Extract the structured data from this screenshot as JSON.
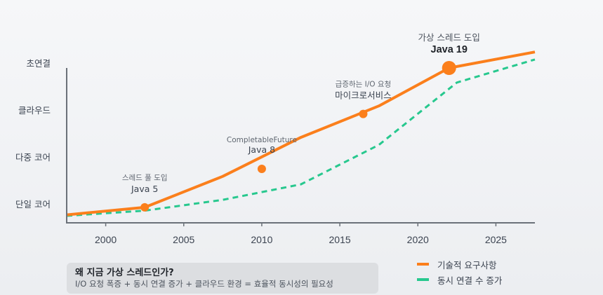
{
  "chart_data": {
    "type": "line",
    "title": "",
    "xlabel": "",
    "ylabel": "",
    "xlim": [
      1997.5,
      2027.5
    ],
    "ylim": [
      0.61,
      3.91
    ],
    "x_ticks": [
      2000,
      2005,
      2010,
      2015,
      2020,
      2025
    ],
    "x_tick_labels": [
      "2000",
      "2005",
      "2010",
      "2015",
      "2020",
      "2025"
    ],
    "y_ticks": [
      1,
      2,
      3,
      4
    ],
    "y_tick_labels": [
      "단일 코어",
      "다중 코어",
      "클라우드",
      "초연결"
    ],
    "grid": false,
    "legend_position": "bottom-right",
    "series": [
      {
        "name": "기술적 요구사항",
        "color": "#fb7f1c",
        "style": "solid",
        "x": [
          1997.5,
          2002.5,
          2007.5,
          2012.5,
          2017.5,
          2022,
          2027.5
        ],
        "y": [
          0.78,
          0.94,
          1.6,
          2.43,
          3.1,
          3.91,
          4.25
        ]
      },
      {
        "name": "동시 연결 수 증가",
        "color": "#27c88e",
        "style": "dashed",
        "x": [
          1997.5,
          2002.5,
          2007.5,
          2012.5,
          2017.5,
          2022.5,
          2027.5
        ],
        "y": [
          0.76,
          0.87,
          1.1,
          1.43,
          2.27,
          3.6,
          4.09
        ]
      }
    ],
    "markers": [
      {
        "x": 2002.5,
        "y": 0.94,
        "size": "small",
        "label_top": "스레드 풀 도입",
        "label_main": "Java 5"
      },
      {
        "x": 2010,
        "y": 1.76,
        "size": "small",
        "label_top": "CompletableFuture",
        "label_main": "Java 8"
      },
      {
        "x": 2016.5,
        "y": 2.93,
        "size": "small",
        "label_top": "급증하는 I/O 요청",
        "label_main": "마이크로서비스"
      },
      {
        "x": 2022,
        "y": 3.91,
        "size": "large",
        "label_top": "가상 스레드 도입",
        "label_main": "Java 19"
      }
    ]
  },
  "callout": {
    "title": "왜 지금 가상 스레드인가?",
    "body": "I/O 요청 폭증 + 동시 연결 증가 + 클라우드 환경 = 효율적 동시성의 필요성"
  },
  "legend": [
    {
      "label": "기술적 요구사항",
      "color": "#fb7f1c"
    },
    {
      "label": "동시 연결 수 증가",
      "color": "#27c88e"
    }
  ],
  "colors": {
    "axis": "#6b7179",
    "orange": "#fb7f1c",
    "green": "#27c88e"
  }
}
